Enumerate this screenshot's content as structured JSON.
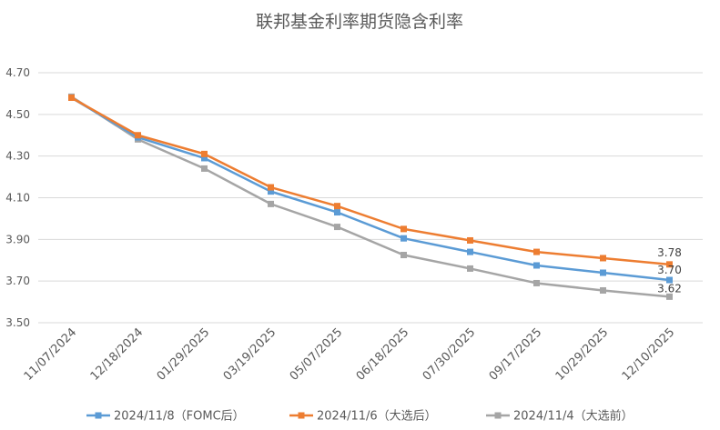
{
  "chart_data": {
    "type": "line",
    "title": "联邦基金利率期货隐含利率",
    "xlabel": "",
    "ylabel": "",
    "categories": [
      "11/07/2024",
      "12/18/2024",
      "01/29/2025",
      "03/19/2025",
      "05/07/2025",
      "06/18/2025",
      "07/30/2025",
      "09/17/2025",
      "10/29/2025",
      "12/10/2025"
    ],
    "y_ticks": [
      "3.50",
      "3.70",
      "3.90",
      "4.10",
      "4.30",
      "4.50",
      "4.70"
    ],
    "ylim": [
      3.5,
      4.7
    ],
    "grid": true,
    "legend_position": "bottom",
    "series": [
      {
        "name": "2024/11/8（FOMC后）",
        "color": "#5b9bd5",
        "values": [
          4.58,
          4.39,
          4.29,
          4.13,
          4.03,
          3.905,
          3.84,
          3.775,
          3.74,
          3.705
        ],
        "end_label": "3.70"
      },
      {
        "name": "2024/11/6（大选后）",
        "color": "#ed7d31",
        "values": [
          4.58,
          4.4,
          4.31,
          4.15,
          4.06,
          3.95,
          3.895,
          3.84,
          3.81,
          3.78
        ],
        "end_label": "3.78"
      },
      {
        "name": "2024/11/4（大选前）",
        "color": "#a5a5a5",
        "values": [
          4.585,
          4.38,
          4.24,
          4.07,
          3.96,
          3.825,
          3.76,
          3.69,
          3.655,
          3.625
        ],
        "end_label": "3.62"
      }
    ]
  }
}
